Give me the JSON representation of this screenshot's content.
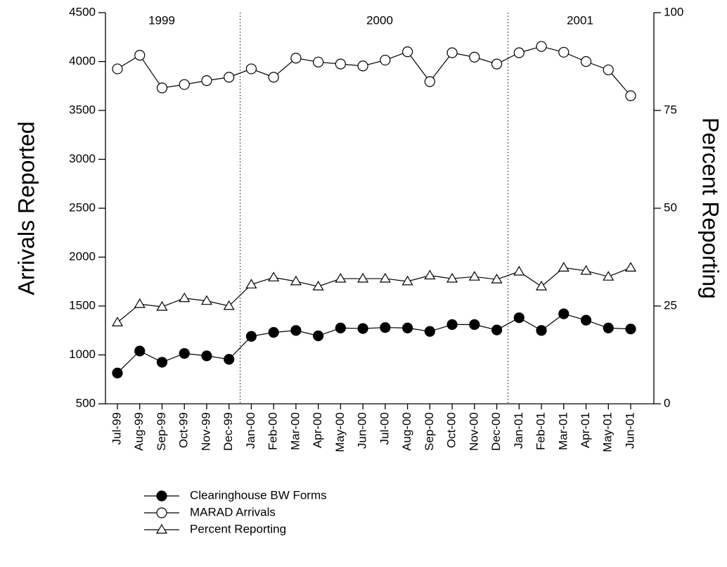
{
  "chart_data": {
    "type": "line",
    "ylabel": "Arrivals Reported",
    "y2label": "Percent Reporting",
    "categories": [
      "Jul-99",
      "Aug-99",
      "Sep-99",
      "Oct-99",
      "Nov-99",
      "Dec-99",
      "Jan-00",
      "Feb-00",
      "Mar-00",
      "Apr-00",
      "May-00",
      "Jun-00",
      "Jul-00",
      "Aug-00",
      "Sep-00",
      "Oct-00",
      "Nov-00",
      "Dec-00",
      "Jan-01",
      "Feb-01",
      "Mar-01",
      "Apr-01",
      "May-01",
      "Jun-01"
    ],
    "ylim": [
      500,
      4500
    ],
    "yticks": [
      500,
      1000,
      1500,
      2000,
      2500,
      3000,
      3500,
      4000,
      4500
    ],
    "y2lim": [
      0,
      100
    ],
    "y2ticks": [
      0,
      25,
      50,
      75,
      100
    ],
    "annotations": [
      "1999",
      "2000",
      "2001"
    ],
    "legend": "bottom",
    "series": [
      {
        "name": "Clearinghouse BW Forms",
        "color": "#000000",
        "marker": "filled-circle",
        "values": [
          815,
          1040,
          925,
          1015,
          990,
          955,
          1190,
          1230,
          1250,
          1195,
          1275,
          1270,
          1280,
          1275,
          1240,
          1310,
          1310,
          1255,
          1380,
          1250,
          1420,
          1355,
          1275,
          1265
        ]
      },
      {
        "name": "MARAD Arrivals",
        "color": "#000000",
        "marker": "open-circle",
        "values": [
          3925,
          4065,
          3730,
          3765,
          3805,
          3840,
          3925,
          3840,
          4035,
          3995,
          3975,
          3955,
          4015,
          4100,
          3795,
          4090,
          4045,
          3975,
          4090,
          4155,
          4095,
          4000,
          3915,
          3650
        ]
      },
      {
        "name": "Percent Reporting",
        "color": "#000000",
        "marker": "open-triangle",
        "axis": "y2",
        "values": [
          20.8,
          25.5,
          24.8,
          27,
          26.3,
          25,
          30.5,
          32.3,
          31.3,
          30,
          32,
          32,
          32,
          31.3,
          32.8,
          32,
          32.5,
          31.8,
          33.8,
          30,
          34.8,
          34,
          32.5,
          34.8
        ]
      }
    ]
  }
}
